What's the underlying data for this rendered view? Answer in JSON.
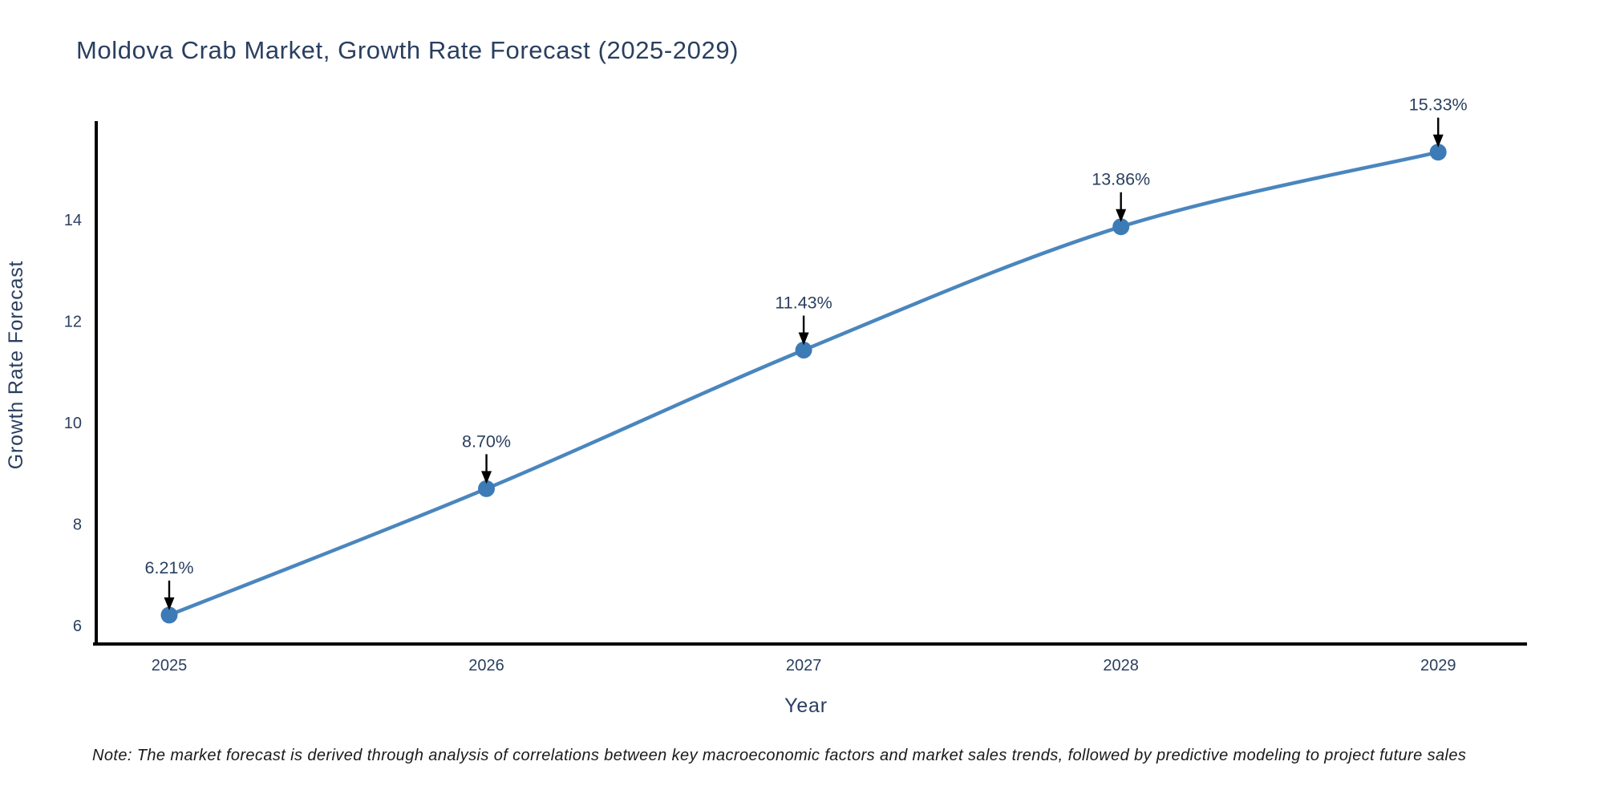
{
  "note": "Note: The market forecast is derived through analysis of correlations between key macroeconomic factors and market sales trends, followed by predictive modeling to project future sales",
  "colors": {
    "line": "#4a86be",
    "marker": "#3d7bb6",
    "axis": "#000000",
    "arrow": "#000000",
    "text": "#2a3f5f",
    "note_text": "#1a1a1a",
    "background": "#ffffff"
  },
  "chart_data": {
    "type": "line",
    "title": "Moldova Crab Market, Growth Rate Forecast (2025-2029)",
    "xlabel": "Year",
    "ylabel": "Growth Rate Forecast",
    "x": [
      2025,
      2026,
      2027,
      2028,
      2029
    ],
    "series": [
      {
        "name": "Growth Rate Forecast",
        "values": [
          6.21,
          8.7,
          11.43,
          13.86,
          15.33
        ]
      }
    ],
    "point_labels": [
      "6.21%",
      "8.70%",
      "11.43%",
      "13.86%",
      "15.33%"
    ],
    "xticks": [
      "2025",
      "2026",
      "2027",
      "2028",
      "2029"
    ],
    "yticks": [
      6,
      8,
      10,
      12,
      14
    ],
    "xlim": [
      2024.77,
      2029.28
    ],
    "ylim": [
      5.64,
      15.91
    ],
    "grid": false,
    "legend": false,
    "line_shape": "spline",
    "annotation_arrows": true
  }
}
